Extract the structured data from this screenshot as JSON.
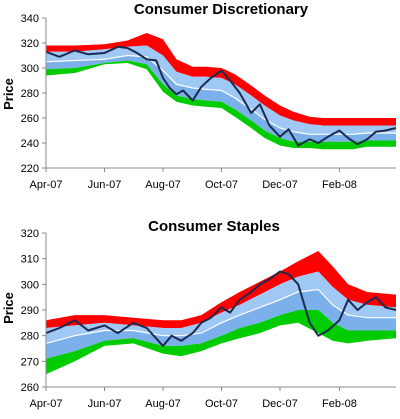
{
  "chart_data": [
    {
      "type": "area",
      "title": "Consumer Discretionary",
      "xlabel": "",
      "ylabel": "Price",
      "ylim": [
        220,
        340
      ],
      "yticks": [
        220,
        240,
        260,
        280,
        300,
        320,
        340
      ],
      "x_start": "2007-04-01",
      "x_end": "2008-03-31",
      "x_tick_labels": [
        "Apr-07",
        "Jun-07",
        "Aug-07",
        "Oct-07",
        "Dec-07",
        "Feb-08"
      ],
      "x_tick_dates": [
        "2007-04-01",
        "2007-06-01",
        "2007-08-01",
        "2007-10-01",
        "2007-12-01",
        "2008-02-01"
      ],
      "grid": false,
      "legend": "none",
      "band_dates": [
        "2007-04-01",
        "2007-05-01",
        "2007-06-01",
        "2007-06-25",
        "2007-07-15",
        "2007-08-01",
        "2007-08-15",
        "2007-09-01",
        "2007-09-15",
        "2007-10-01",
        "2007-10-15",
        "2007-11-01",
        "2007-11-15",
        "2007-12-01",
        "2007-12-15",
        "2008-01-01",
        "2008-01-15",
        "2008-02-01",
        "2008-02-15",
        "2008-03-01",
        "2008-03-31"
      ],
      "bands": {
        "top": [
          318,
          318,
          319,
          322,
          328,
          323,
          307,
          301,
          301,
          300,
          295,
          286,
          278,
          270,
          265,
          261,
          260,
          260,
          260,
          260,
          260
        ],
        "upper": [
          313,
          313,
          315,
          317,
          318,
          310,
          297,
          293,
          293,
          292,
          287,
          278,
          270,
          262,
          258,
          255,
          254,
          254,
          254,
          254,
          254
        ],
        "mid": [
          305,
          306,
          307,
          310,
          309,
          298,
          287,
          284,
          283,
          282,
          276,
          267,
          259,
          252,
          249,
          247,
          247,
          247,
          247,
          248,
          248
        ],
        "lower": [
          299,
          300,
          304,
          306,
          303,
          287,
          278,
          275,
          274,
          273,
          267,
          258,
          250,
          244,
          241,
          241,
          241,
          241,
          241,
          242,
          242
        ],
        "bottom": [
          294,
          296,
          303,
          304,
          299,
          281,
          273,
          270,
          269,
          268,
          261,
          252,
          244,
          238,
          236,
          236,
          235,
          235,
          235,
          237,
          237
        ]
      },
      "price_dates": [
        "2007-04-01",
        "2007-04-15",
        "2007-05-01",
        "2007-05-15",
        "2007-06-01",
        "2007-06-15",
        "2007-06-25",
        "2007-07-05",
        "2007-07-15",
        "2007-07-25",
        "2007-08-01",
        "2007-08-08",
        "2007-08-15",
        "2007-08-22",
        "2007-09-01",
        "2007-09-10",
        "2007-09-20",
        "2007-10-01",
        "2007-10-10",
        "2007-10-20",
        "2007-11-01",
        "2007-11-10",
        "2007-11-20",
        "2007-12-01",
        "2007-12-10",
        "2007-12-20",
        "2008-01-01",
        "2008-01-10",
        "2008-01-20",
        "2008-02-01",
        "2008-02-10",
        "2008-02-20",
        "2008-03-01",
        "2008-03-10",
        "2008-03-20",
        "2008-03-31"
      ],
      "price": [
        313,
        309,
        314,
        311,
        312,
        317,
        316,
        312,
        307,
        306,
        292,
        284,
        279,
        282,
        274,
        285,
        292,
        298,
        290,
        280,
        264,
        271,
        254,
        245,
        251,
        238,
        243,
        240,
        245,
        250,
        244,
        239,
        243,
        249,
        250,
        252
      ],
      "colors": {
        "top": "#ff0000",
        "upper": "#9fc8f4",
        "lower": "#7bb0ea",
        "bottom": "#00cc00",
        "mid": "#ffffff",
        "price": "#1c2a4f"
      }
    },
    {
      "type": "area",
      "title": "Consumer Staples",
      "xlabel": "",
      "ylabel": "Price",
      "ylim": [
        260,
        320
      ],
      "yticks": [
        260,
        270,
        280,
        290,
        300,
        310,
        320
      ],
      "x_start": "2007-04-01",
      "x_end": "2008-03-31",
      "x_tick_labels": [
        "Apr-07",
        "Jun-07",
        "Aug-07",
        "Oct-07",
        "Dec-07",
        "Feb-08"
      ],
      "x_tick_dates": [
        "2007-04-01",
        "2007-06-01",
        "2007-08-01",
        "2007-10-01",
        "2007-12-01",
        "2008-02-01"
      ],
      "grid": false,
      "legend": "none",
      "band_dates": [
        "2007-04-01",
        "2007-05-01",
        "2007-06-01",
        "2007-07-01",
        "2007-08-01",
        "2007-08-20",
        "2007-09-10",
        "2007-10-01",
        "2007-10-20",
        "2007-11-10",
        "2007-12-01",
        "2007-12-20",
        "2008-01-10",
        "2008-01-25",
        "2008-02-10",
        "2008-03-01",
        "2008-03-31"
      ],
      "bands": {
        "top": [
          286,
          288,
          288,
          287,
          286,
          286,
          288,
          293,
          297,
          301,
          305,
          309,
          313,
          307,
          300,
          297,
          296
        ],
        "upper": [
          283,
          284,
          285,
          284,
          283,
          283,
          285,
          289,
          292,
          296,
          300,
          303,
          305,
          299,
          294,
          292,
          291
        ],
        "mid": [
          277,
          280,
          282,
          282,
          280,
          280,
          281,
          285,
          288,
          291,
          294,
          297,
          298,
          292,
          288,
          287,
          287
        ],
        "lower": [
          271,
          274,
          278,
          279,
          276,
          276,
          277,
          280,
          283,
          285,
          288,
          290,
          290,
          285,
          282,
          282,
          282
        ],
        "bottom": [
          265,
          270,
          276,
          277,
          273,
          272,
          274,
          277,
          279,
          281,
          284,
          285,
          281,
          278,
          277,
          278,
          279
        ]
      },
      "price_dates": [
        "2007-04-01",
        "2007-04-15",
        "2007-05-01",
        "2007-05-15",
        "2007-06-01",
        "2007-06-15",
        "2007-07-01",
        "2007-07-15",
        "2007-08-01",
        "2007-08-10",
        "2007-08-20",
        "2007-09-01",
        "2007-09-10",
        "2007-09-20",
        "2007-10-01",
        "2007-10-10",
        "2007-10-20",
        "2007-11-01",
        "2007-11-10",
        "2007-11-20",
        "2007-12-01",
        "2007-12-10",
        "2007-12-20",
        "2008-01-01",
        "2008-01-10",
        "2008-01-20",
        "2008-02-01",
        "2008-02-10",
        "2008-02-20",
        "2008-03-01",
        "2008-03-10",
        "2008-03-20",
        "2008-03-31"
      ],
      "price": [
        281,
        283,
        286,
        282,
        284,
        281,
        285,
        283,
        276,
        280,
        278,
        281,
        285,
        287,
        291,
        289,
        294,
        297,
        300,
        302,
        305,
        304,
        300,
        285,
        280,
        282,
        286,
        294,
        290,
        293,
        295,
        291,
        290
      ],
      "colors": {
        "top": "#ff0000",
        "upper": "#9fc8f4",
        "lower": "#7bb0ea",
        "bottom": "#00cc00",
        "mid": "#ffffff",
        "price": "#1c2a4f"
      }
    }
  ]
}
